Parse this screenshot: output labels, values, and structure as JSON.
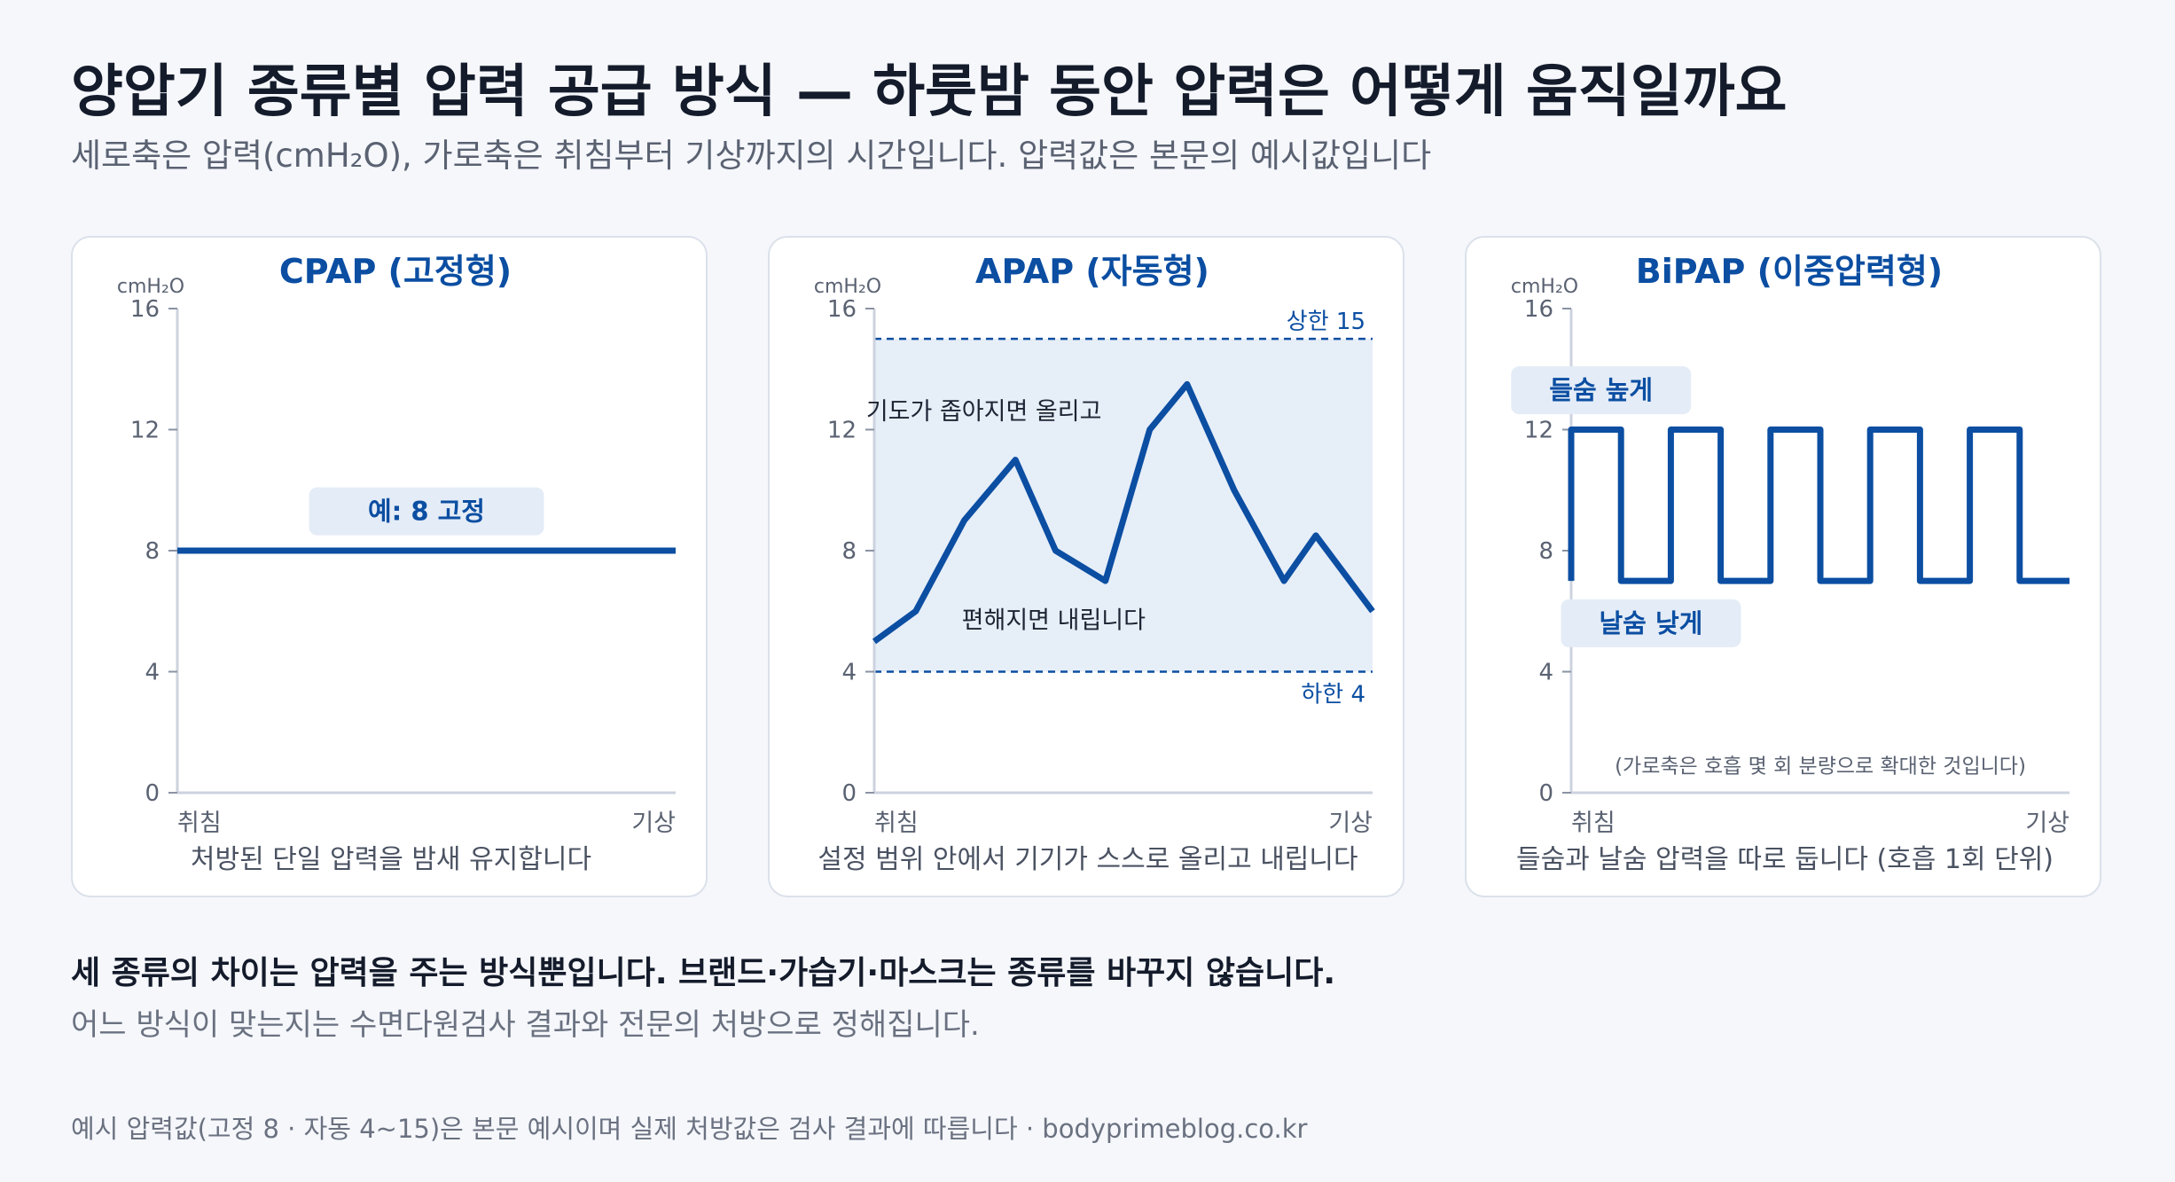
{
  "title": "양압기 종류별 압력 공급 방식 — 하룻밤 동안 압력은 어떻게 움직일까요",
  "subtitle": "세로축은 압력(cmH₂O), 가로축은 취침부터 기상까지의 시간입니다. 압력값은 본문의 예시값입니다",
  "colors": {
    "line": "#0b4ea2",
    "band": "#e6eef8",
    "badge_bg": "#e4ecf7",
    "axis": "#ccd3de",
    "tick_text": "#5a6272"
  },
  "chart_data": [
    {
      "type": "line",
      "title": "CPAP (고정형)",
      "ylabel": "cmH₂O",
      "ylim": [
        0,
        16
      ],
      "yticks": [
        "0",
        "4",
        "8",
        "12",
        "16"
      ],
      "x_start_label": "취침",
      "x_end_label": "기상",
      "caption": "처방된 단일 압력을 밤새 유지합니다",
      "series": [
        {
          "x": [
            0,
            1
          ],
          "y": [
            8,
            8
          ]
        }
      ],
      "annotations": [
        {
          "text": "예: 8 고정",
          "x": 0.5,
          "y": 9.3,
          "style": "badge"
        }
      ]
    },
    {
      "type": "line",
      "title": "APAP (자동형)",
      "ylabel": "cmH₂O",
      "ylim": [
        0,
        16
      ],
      "yticks": [
        "0",
        "4",
        "8",
        "12",
        "16"
      ],
      "x_start_label": "취침",
      "x_end_label": "기상",
      "caption": "설정 범위 안에서 기기가 스스로 올리고 내립니다",
      "range_band": {
        "lower": 4,
        "upper": 15,
        "lower_label": "하한 4",
        "upper_label": "상한 15"
      },
      "series": [
        {
          "x": [
            0,
            0.0833,
            0.1806,
            0.2833,
            0.3639,
            0.4639,
            0.5528,
            0.6278,
            0.7222,
            0.8222,
            0.8861,
            1.0
          ],
          "y": [
            5,
            6,
            9,
            11,
            8,
            7,
            12,
            13.5,
            10,
            7,
            8.5,
            6
          ]
        }
      ],
      "annotations": [
        {
          "text": "기도가 좁아지면 올리고",
          "x": 0.22,
          "y": 12.6,
          "style": "plain"
        },
        {
          "text": "편해지면 내립니다",
          "x": 0.36,
          "y": 5.7,
          "style": "plain"
        }
      ]
    },
    {
      "type": "line",
      "title": "BiPAP (이중압력형)",
      "ylabel": "cmH₂O",
      "ylim": [
        0,
        16
      ],
      "yticks": [
        "0",
        "4",
        "8",
        "12",
        "16"
      ],
      "x_start_label": "취침",
      "x_end_label": "기상",
      "caption": "들숨과 날숨 압력을 따로 둡니다 (호흡 1회 단위)",
      "series": [
        {
          "x": [
            0,
            0,
            0.1,
            0.1,
            0.2,
            0.2,
            0.3,
            0.3,
            0.4,
            0.4,
            0.5,
            0.5,
            0.6,
            0.6,
            0.7,
            0.7,
            0.8,
            0.8,
            0.9,
            0.9,
            1.0
          ],
          "y": [
            7,
            12,
            12,
            7,
            7,
            12,
            12,
            7,
            7,
            12,
            12,
            7,
            7,
            12,
            12,
            7,
            7,
            12,
            12,
            7,
            7
          ]
        }
      ],
      "annotations": [
        {
          "text": "들숨 높게",
          "x": 0.06,
          "y": 13.3,
          "style": "badge"
        },
        {
          "text": "날숨 낮게",
          "x": 0.16,
          "y": 5.6,
          "style": "badge"
        },
        {
          "text": "(가로축은 호흡 몇 회 분량으로 확대한 것입니다)",
          "x": 0.5,
          "y": 0.9,
          "style": "small"
        }
      ]
    }
  ],
  "summary": "세 종류의 차이는 압력을 주는 방식뿐입니다. 브랜드·가습기·마스크는 종류를 바꾸지 않습니다.",
  "note": "어느 방식이 맞는지는 수면다원검사 결과와 전문의 처방으로 정해집니다.",
  "footer": "예시 압력값(고정 8 · 자동 4~15)은 본문 예시이며 실제 처방값은 검사 결과에 따릅니다 · bodyprimeblog.co.kr"
}
